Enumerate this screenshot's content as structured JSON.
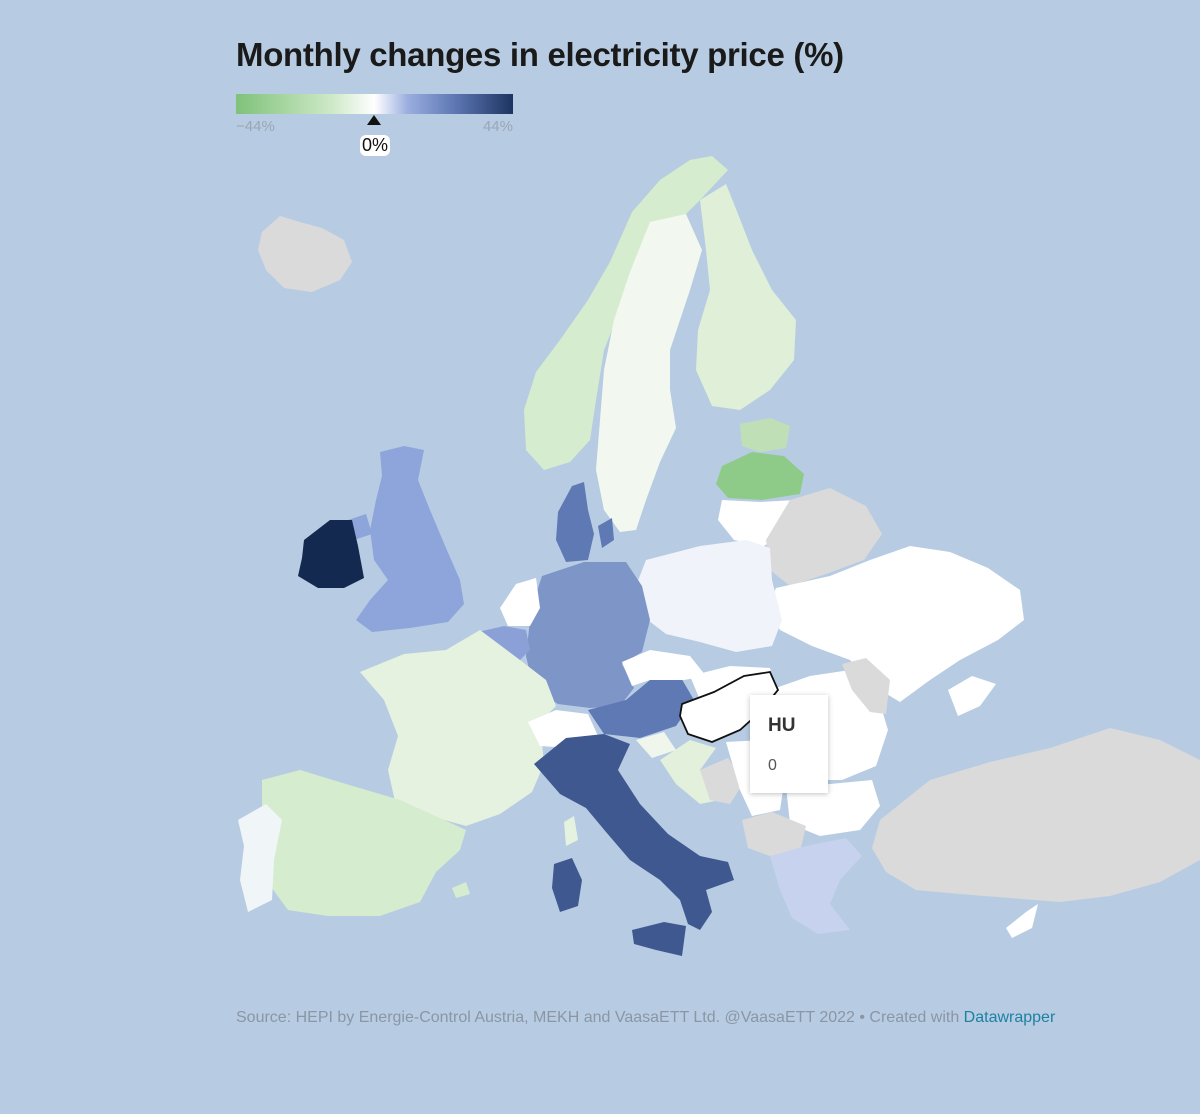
{
  "title": "Monthly changes in electricity price (%)",
  "legend": {
    "min_label": "−44%",
    "max_label": "44%",
    "marker_label": "0%",
    "min_value": -44,
    "max_value": 44,
    "marker_value": 0
  },
  "tooltip": {
    "country_code": "HU",
    "value": "0"
  },
  "footer": {
    "source_text": "Source: HEPI by Energie-Control Austria, MEKH and VaasaETT Ltd. @VaasaETT 2022 • Created with ",
    "credit_link": "Datawrapper"
  },
  "colors": {
    "background": "#b7cce3",
    "no_data": "#dadada",
    "negative_strong": "#7fc27a",
    "negative_light": "#d6eccf",
    "neutral": "#ffffff",
    "positive_light": "#9aaee0",
    "positive_strong": "#1d3461",
    "link": "#1d81a2"
  }
}
